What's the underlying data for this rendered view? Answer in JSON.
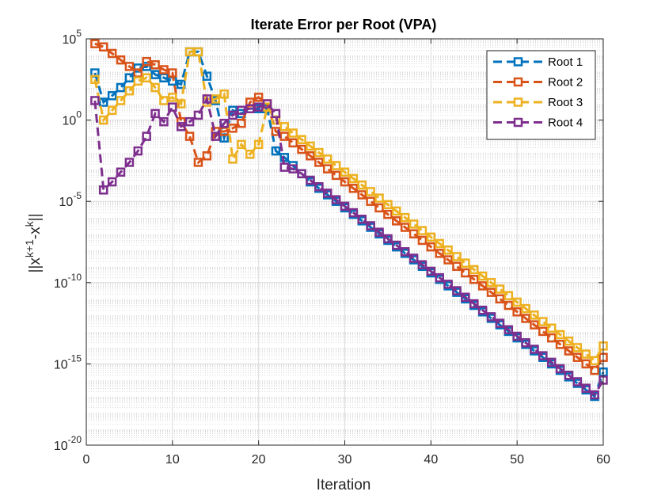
{
  "chart_data": {
    "type": "line",
    "title": "Iterate Error per Root (VPA)",
    "xlabel": "Iteration",
    "ylabel": "||x^{k+1}-x^{k}||",
    "ylabel_parts": {
      "base": "||x",
      "sup1": "k+1",
      "mid": "-x",
      "sup2": "k",
      "end": "||"
    },
    "x_scale": "linear",
    "y_scale": "log",
    "xlim": [
      0,
      60
    ],
    "ylim_exponent": [
      -20,
      5
    ],
    "x_ticks": [
      0,
      10,
      20,
      30,
      40,
      50,
      60
    ],
    "y_tick_labels": [
      {
        "exp": 5,
        "base": "10",
        "sup": "5"
      },
      {
        "exp": 0,
        "base": "10",
        "sup": "0"
      },
      {
        "exp": -5,
        "base": "10",
        "sup": "-5"
      },
      {
        "exp": -10,
        "base": "10",
        "sup": "-10"
      },
      {
        "exp": -15,
        "base": "10",
        "sup": "-15"
      },
      {
        "exp": -20,
        "base": "10",
        "sup": "-20"
      }
    ],
    "grid": true,
    "minor_grid": true,
    "legend_position": "top-right",
    "marker": "square",
    "line_style": "dashed",
    "series": [
      {
        "name": "Root 1",
        "color": "#0072BD",
        "x": [
          1,
          2,
          3,
          4,
          5,
          6,
          7,
          8,
          9,
          10,
          11,
          12,
          13,
          14,
          15,
          16,
          17,
          18,
          19,
          20,
          21,
          22,
          23,
          24,
          25,
          26,
          27,
          28,
          29,
          30,
          31,
          32,
          33,
          34,
          35,
          36,
          37,
          38,
          39,
          40,
          41,
          42,
          43,
          44,
          45,
          46,
          47,
          48,
          49,
          50,
          51,
          52,
          53,
          54,
          55,
          56,
          57,
          58,
          59,
          60
        ],
        "log10_values": [
          2.9,
          1.1,
          1.5,
          2.0,
          2.6,
          3.2,
          3.3,
          2.8,
          2.6,
          2.4,
          2.2,
          4.2,
          4.2,
          2.7,
          1.2,
          -1.1,
          0.6,
          0.4,
          0.7,
          0.7,
          0.7,
          -1.9,
          -2.3,
          -2.8,
          -3.3,
          -3.8,
          -4.2,
          -4.6,
          -5.0,
          -5.4,
          -5.8,
          -6.2,
          -6.6,
          -7.0,
          -7.4,
          -7.8,
          -8.2,
          -8.6,
          -9.0,
          -9.4,
          -9.8,
          -10.2,
          -10.6,
          -11.0,
          -11.4,
          -11.8,
          -12.2,
          -12.6,
          -13.0,
          -13.4,
          -13.8,
          -14.2,
          -14.6,
          -15.0,
          -15.4,
          -15.8,
          -16.2,
          -16.6,
          -17.0,
          -15.5
        ],
        "log10_values_note": "values read off log-scale axis"
      },
      {
        "name": "Root 2",
        "color": "#D95319",
        "x": [
          1,
          2,
          3,
          4,
          5,
          6,
          7,
          8,
          9,
          10,
          11,
          12,
          13,
          14,
          15,
          16,
          17,
          18,
          19,
          20,
          21,
          22,
          23,
          24,
          25,
          26,
          27,
          28,
          29,
          30,
          31,
          32,
          33,
          34,
          35,
          36,
          37,
          38,
          39,
          40,
          41,
          42,
          43,
          44,
          45,
          46,
          47,
          48,
          49,
          50,
          51,
          52,
          53,
          54,
          55,
          56,
          57,
          58,
          59,
          60
        ],
        "log10_values": [
          4.7,
          4.5,
          4.1,
          3.7,
          3.3,
          2.9,
          3.6,
          3.4,
          3.1,
          2.9,
          -0.1,
          -1.0,
          -2.6,
          -2.2,
          -0.7,
          -0.7,
          -0.5,
          -0.2,
          1.1,
          1.4,
          1.0,
          -0.7,
          -1.0,
          -1.4,
          -1.8,
          -2.2,
          -2.6,
          -3.0,
          -3.4,
          -3.8,
          -4.2,
          -4.6,
          -5.0,
          -5.4,
          -5.8,
          -6.2,
          -6.6,
          -7.0,
          -7.4,
          -7.8,
          -8.2,
          -8.6,
          -9.0,
          -9.4,
          -9.8,
          -10.2,
          -10.6,
          -11.0,
          -11.4,
          -11.8,
          -12.2,
          -12.6,
          -13.0,
          -13.4,
          -13.8,
          -14.2,
          -14.6,
          -15.0,
          -15.4,
          -14.6
        ]
      },
      {
        "name": "Root 3",
        "color": "#EDB120",
        "x": [
          1,
          2,
          3,
          4,
          5,
          6,
          7,
          8,
          9,
          10,
          11,
          12,
          13,
          14,
          15,
          16,
          17,
          18,
          19,
          20,
          21,
          22,
          23,
          24,
          25,
          26,
          27,
          28,
          29,
          30,
          31,
          32,
          33,
          34,
          35,
          36,
          37,
          38,
          39,
          40,
          41,
          42,
          43,
          44,
          45,
          46,
          47,
          48,
          49,
          50,
          51,
          52,
          53,
          54,
          55,
          56,
          57,
          58,
          59,
          60
        ],
        "log10_values": [
          2.5,
          0.0,
          0.6,
          1.2,
          1.8,
          2.4,
          2.6,
          2.0,
          1.2,
          1.4,
          1.0,
          4.2,
          4.2,
          1.1,
          1.3,
          1.6,
          -2.4,
          -1.5,
          -2.1,
          -1.5,
          0.8,
          0.0,
          -0.4,
          -0.8,
          -1.2,
          -1.6,
          -2.0,
          -2.4,
          -2.8,
          -3.2,
          -3.6,
          -4.0,
          -4.4,
          -4.8,
          -5.2,
          -5.6,
          -6.0,
          -6.4,
          -6.8,
          -7.2,
          -7.6,
          -8.0,
          -8.4,
          -8.8,
          -9.2,
          -9.6,
          -10.0,
          -10.4,
          -10.8,
          -11.2,
          -11.6,
          -12.0,
          -12.4,
          -12.8,
          -13.2,
          -13.6,
          -14.0,
          -14.4,
          -14.8,
          -13.9
        ]
      },
      {
        "name": "Root 4",
        "color": "#7E2F8E",
        "x": [
          1,
          2,
          3,
          4,
          5,
          6,
          7,
          8,
          9,
          10,
          11,
          12,
          13,
          14,
          15,
          16,
          17,
          18,
          19,
          20,
          21,
          22,
          23,
          24,
          25,
          26,
          27,
          28,
          29,
          30,
          31,
          32,
          33,
          34,
          35,
          36,
          37,
          38,
          39,
          40,
          41,
          42,
          43,
          44,
          45,
          46,
          47,
          48,
          49,
          50,
          51,
          52,
          53,
          54,
          55,
          56,
          57,
          58,
          59,
          60
        ],
        "log10_values": [
          1.2,
          -4.3,
          -3.8,
          -3.2,
          -2.6,
          -1.9,
          -1.0,
          0.4,
          -0.1,
          0.8,
          -0.4,
          -0.1,
          0.3,
          1.3,
          -1.0,
          -0.2,
          0.3,
          0.6,
          0.7,
          0.8,
          1.0,
          0.4,
          -2.9,
          -3.0,
          -3.3,
          -3.7,
          -4.1,
          -4.5,
          -4.9,
          -5.3,
          -5.7,
          -6.1,
          -6.5,
          -6.9,
          -7.3,
          -7.7,
          -8.1,
          -8.5,
          -8.9,
          -9.3,
          -9.7,
          -10.1,
          -10.5,
          -10.9,
          -11.3,
          -11.7,
          -12.1,
          -12.5,
          -12.9,
          -13.3,
          -13.7,
          -14.1,
          -14.5,
          -14.9,
          -15.3,
          -15.7,
          -16.1,
          -16.5,
          -16.9,
          -16.0
        ]
      }
    ]
  }
}
